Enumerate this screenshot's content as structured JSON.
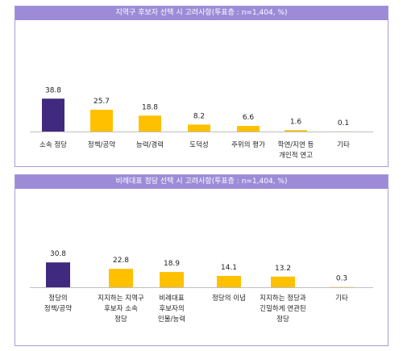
{
  "chart_data": [
    {
      "type": "bar",
      "title": "지역구 후보자 선택 시 고려사항(투표층 : n=1,404, %)",
      "categories": [
        "소속 정당",
        "정책/공약",
        "능력/경력",
        "도덕성",
        "주위의 평가",
        "학연/지연 등\n개인적 연고",
        "기타"
      ],
      "values": [
        38.8,
        25.7,
        18.8,
        8.2,
        6.6,
        1.6,
        0.1
      ],
      "colors": [
        "#3f2a7f",
        "#ffc000",
        "#ffc000",
        "#ffc000",
        "#ffc000",
        "#ffc000",
        "#ffc000"
      ],
      "ylim": [
        0,
        40
      ],
      "grid": false,
      "legend": "none"
    },
    {
      "type": "bar",
      "title": "비례대표 정당 선택 시 고려사항(투표층 : n=1,404, %)",
      "categories": [
        "정당의\n정책/공약",
        "지지하는 지역구\n후보자 소속\n정당",
        "비례대표\n후보자의\n인물/능력",
        "정당의 이념",
        "지지하는 정당과\n긴밀하게 연관된\n정당",
        "기타"
      ],
      "values": [
        30.8,
        22.8,
        18.9,
        14.1,
        13.2,
        0.3
      ],
      "colors": [
        "#3f2a7f",
        "#ffc000",
        "#ffc000",
        "#ffc000",
        "#ffc000",
        "#ffc000"
      ],
      "ylim": [
        0,
        40
      ],
      "grid": false,
      "legend": "none"
    }
  ]
}
